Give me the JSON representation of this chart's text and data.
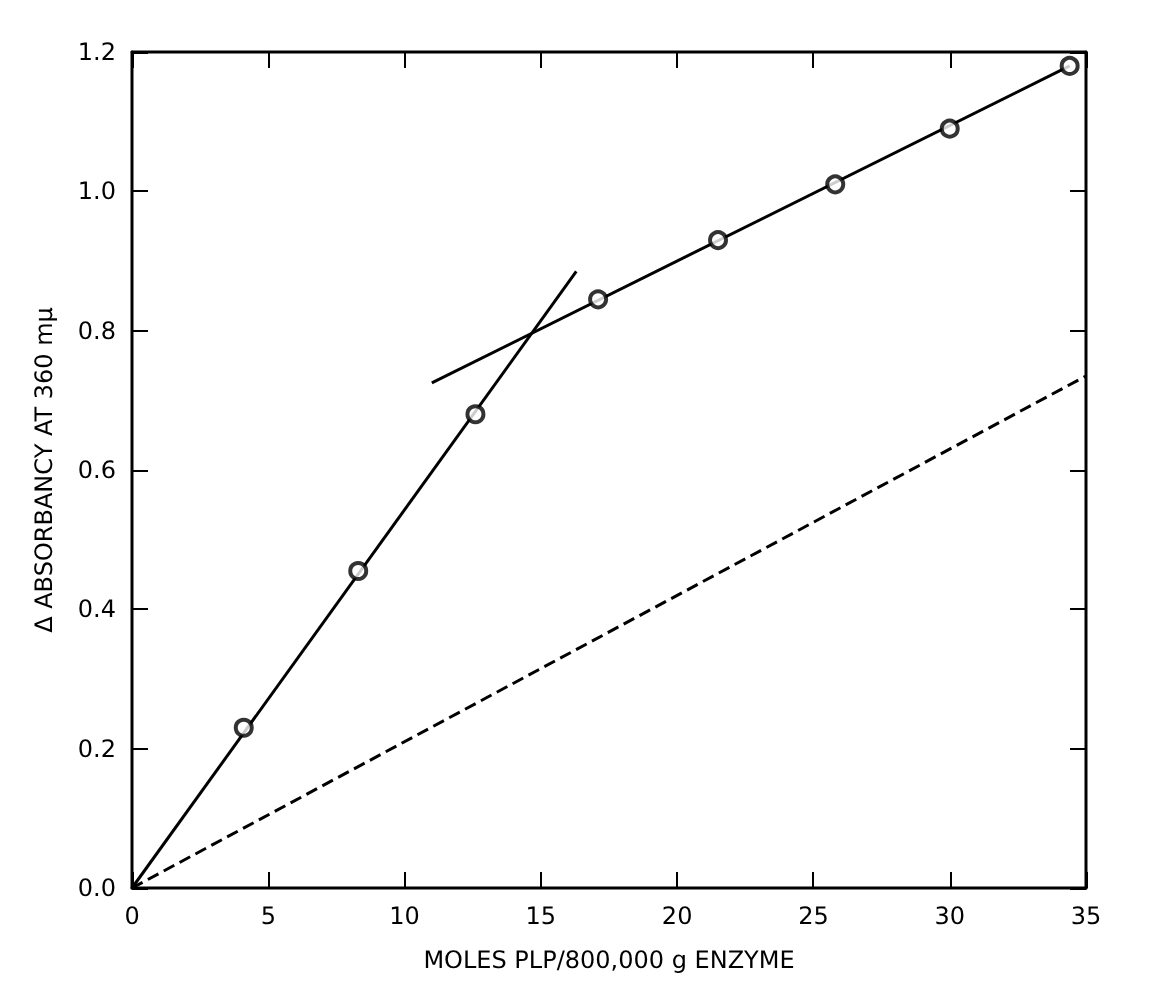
{
  "chart_data": {
    "type": "scatter",
    "xlabel": "MOLES PLP/800,000 g ENZYME",
    "ylabel": "Δ ABSORBANCY AT 360 mμ",
    "xlim": [
      0,
      35
    ],
    "xticks": [
      0,
      5,
      10,
      15,
      20,
      25,
      30,
      35
    ],
    "ylim": [
      0,
      1.2
    ],
    "yticks": [
      {
        "value": 0,
        "label": "0.0"
      },
      0.2,
      0.4,
      0.6,
      0.8,
      {
        "value": 1,
        "label": "1.0"
      },
      1.2
    ],
    "grid": false,
    "series": [
      {
        "color": "#000000",
        "marker": "circle",
        "x": [
          4.1,
          8.3,
          12.6,
          17.1,
          21.5,
          25.8,
          30,
          34.4
        ],
        "values": [
          0.23,
          0.455,
          0.68,
          0.845,
          0.93,
          1.01,
          1.09,
          1.18
        ]
      },
      {
        "type": "line",
        "color": "#000000",
        "marker": "none",
        "line_style": "solid",
        "x": [
          0,
          16.3
        ],
        "values": [
          0,
          0.885
        ]
      },
      {
        "type": "line",
        "color": "#000000",
        "marker": "none",
        "line_style": "solid",
        "x": [
          11,
          34.4
        ],
        "values": [
          0.725,
          1.18
        ]
      },
      {
        "type": "line",
        "color": "#000000",
        "marker": "none",
        "line_style": "dashed",
        "x": [
          0,
          35
        ],
        "values": [
          0,
          0.735
        ]
      }
    ]
  }
}
